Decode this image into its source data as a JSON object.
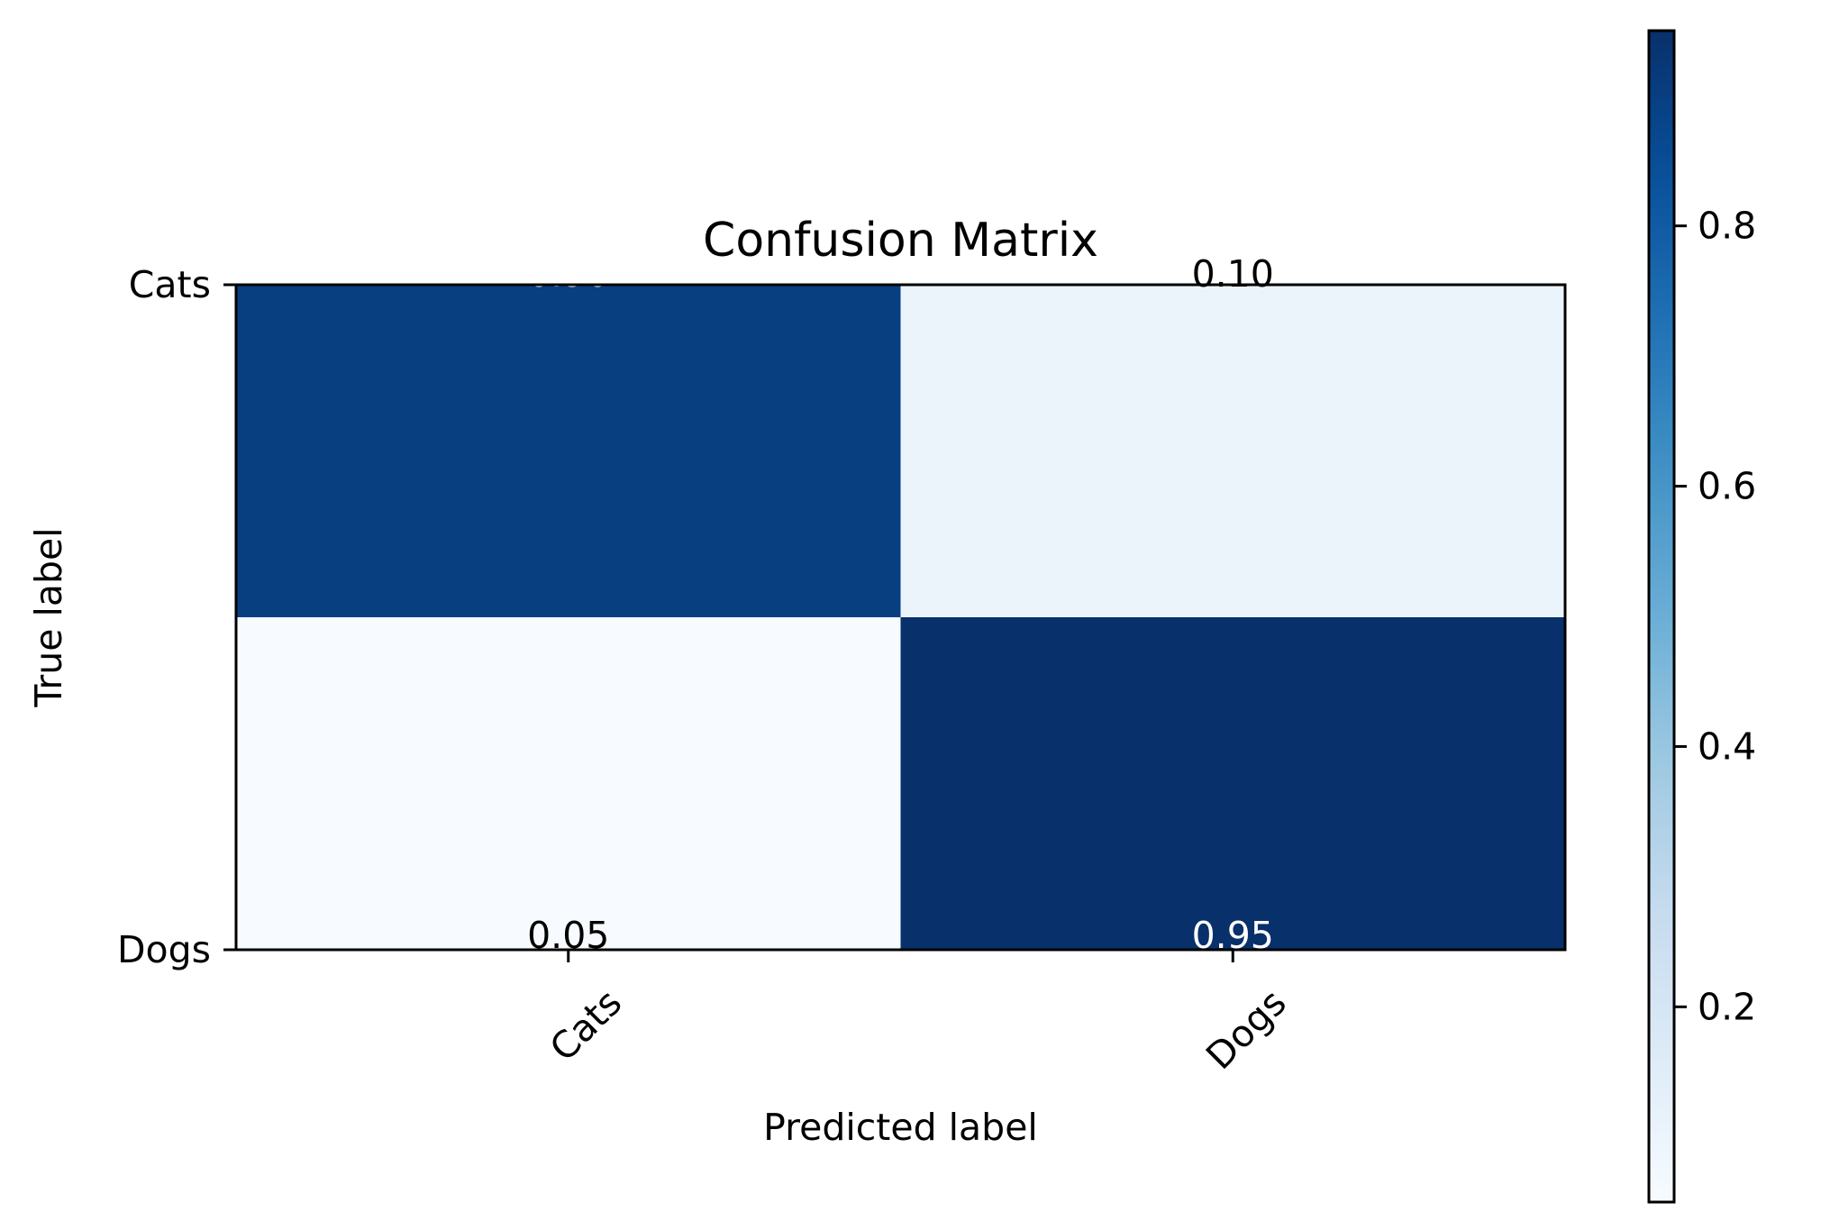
{
  "chart_data": {
    "type": "heatmap",
    "title": "Confusion Matrix",
    "xlabel": "Predicted label",
    "ylabel": "True label",
    "x_categories": [
      "Cats",
      "Dogs"
    ],
    "y_categories": [
      "Cats",
      "Dogs"
    ],
    "matrix": [
      [
        0.9,
        0.1
      ],
      [
        0.05,
        0.95
      ]
    ],
    "cell_text": [
      [
        "0.90",
        "0.10"
      ],
      [
        "0.05",
        "0.95"
      ]
    ],
    "colormap": "Blues",
    "colorbar": {
      "range": [
        0.05,
        0.95
      ],
      "ticks": [
        0.2,
        0.4,
        0.6,
        0.8
      ],
      "tick_labels": [
        "0.2",
        "0.4",
        "0.6",
        "0.8"
      ]
    },
    "x_tick_rotation_deg": 45,
    "grid": false,
    "colors": {
      "dark_text": "#000000",
      "light_text": "#ffffff",
      "frame": "#000000"
    }
  }
}
